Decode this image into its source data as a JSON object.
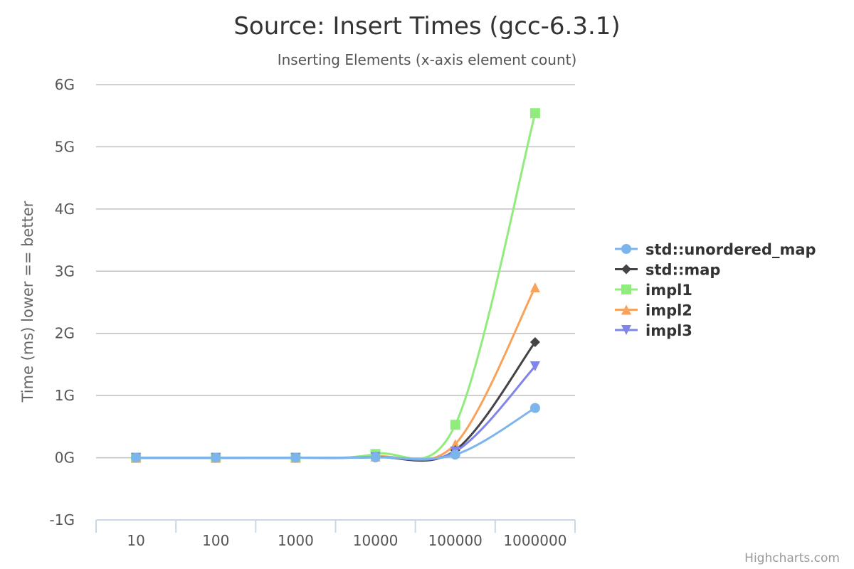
{
  "chart_data": {
    "type": "line",
    "title": "Source: Insert Times (gcc-6.3.1)",
    "subtitle": "Inserting Elements (x-axis element count)",
    "xlabel": "",
    "ylabel": "Time (ms) lower == better",
    "categories": [
      "10",
      "100",
      "1000",
      "10000",
      "100000",
      "1000000"
    ],
    "y_ticks": [
      "-1G",
      "0G",
      "1G",
      "2G",
      "3G",
      "4G",
      "5G",
      "6G"
    ],
    "ylim": [
      -1000000000,
      6000000000
    ],
    "grid": true,
    "legend_position": "right",
    "series": [
      {
        "name": "std::unordered_map",
        "color": "#7cb5ec",
        "marker": "circle",
        "values": [
          0,
          0,
          0,
          5000000,
          50000000,
          800000000
        ]
      },
      {
        "name": "std::map",
        "color": "#434348",
        "marker": "diamond",
        "values": [
          0,
          0,
          0,
          10000000,
          120000000,
          1860000000
        ]
      },
      {
        "name": "impl1",
        "color": "#90ed7d",
        "marker": "square",
        "values": [
          0,
          0,
          0,
          60000000,
          530000000,
          5540000000
        ]
      },
      {
        "name": "impl2",
        "color": "#f7a35c",
        "marker": "triangle",
        "values": [
          0,
          0,
          0,
          20000000,
          220000000,
          2740000000
        ]
      },
      {
        "name": "impl3",
        "color": "#8085e9",
        "marker": "triangle-down",
        "values": [
          0,
          0,
          0,
          10000000,
          100000000,
          1470000000
        ]
      }
    ]
  },
  "credits": "Highcharts.com"
}
